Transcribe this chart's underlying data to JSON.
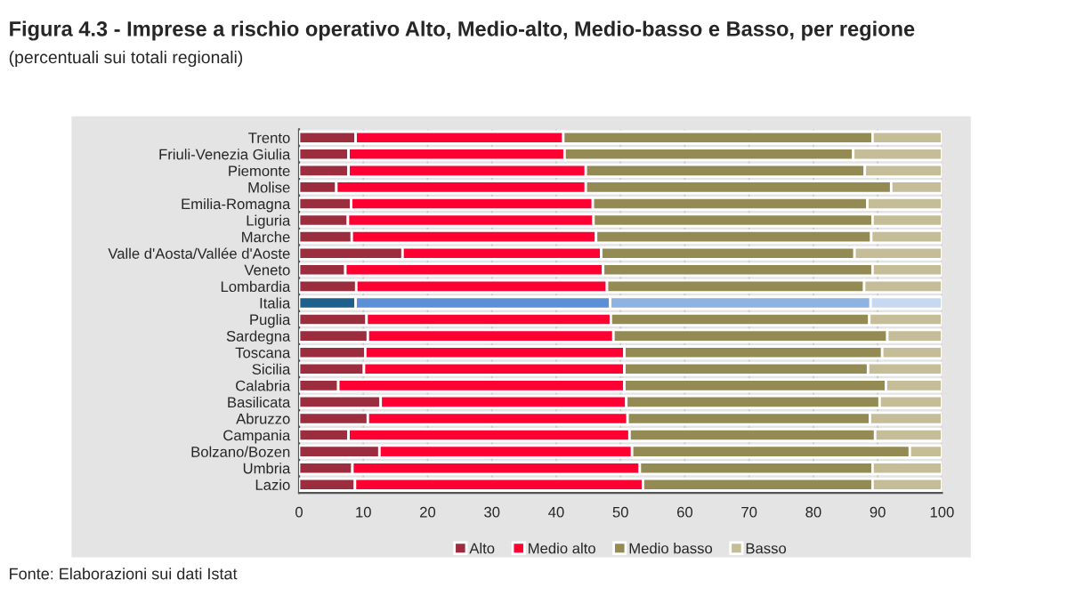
{
  "chart_data": {
    "type": "bar",
    "orientation": "horizontal",
    "stacked": true,
    "title": "Figura 4.3 - Imprese a rischio operativo Alto, Medio-alto, Medio-basso e Basso, per regione",
    "subtitle": "(percentuali sui totali regionali)",
    "annotations": [
      "Fonte: Elaborazioni sui dati Istat"
    ],
    "categories": [
      "Trento",
      "Friuli-Venezia Giulia",
      "Piemonte",
      "Molise",
      "Emilia-Romagna",
      "Liguria",
      "Marche",
      "Valle d'Aosta/Vallée d'Aoste",
      "Veneto",
      "Lombardia",
      "Italia",
      "Puglia",
      "Sardegna",
      "Toscana",
      "Sicilia",
      "Calabria",
      "Basilicata",
      "Abruzzo",
      "Campania",
      "Bolzano/Bozen",
      "Umbria",
      "Lazio"
    ],
    "series": [
      {
        "name": "Alto",
        "color": "#9b2d3f",
        "colors": [
          "#9b2d3f",
          "#9b2d3f",
          "#9b2d3f",
          "#9b2d3f",
          "#9b2d3f",
          "#9b2d3f",
          "#9b2d3f",
          "#9b2d3f",
          "#9b2d3f",
          "#9b2d3f",
          "#1f5f8b",
          "#9b2d3f",
          "#9b2d3f",
          "#9b2d3f",
          "#9b2d3f",
          "#9b2d3f",
          "#9b2d3f",
          "#9b2d3f",
          "#9b2d3f",
          "#9b2d3f",
          "#9b2d3f",
          "#9b2d3f"
        ],
        "values": [
          8.8,
          7.7,
          7.7,
          5.8,
          8.1,
          7.6,
          8.2,
          16.1,
          7.2,
          8.9,
          8.8,
          10.5,
          10.7,
          10.3,
          10.1,
          6.1,
          12.7,
          10.7,
          7.7,
          12.5,
          8.3,
          8.7
        ]
      },
      {
        "name": "Medio alto",
        "color": "#ff0033",
        "colors": [
          "#ff0033",
          "#ff0033",
          "#ff0033",
          "#ff0033",
          "#ff0033",
          "#ff0033",
          "#ff0033",
          "#ff0033",
          "#ff0033",
          "#ff0033",
          "#5b8fd6",
          "#ff0033",
          "#ff0033",
          "#ff0033",
          "#ff0033",
          "#ff0033",
          "#ff0033",
          "#ff0033",
          "#ff0033",
          "#ff0033",
          "#ff0033",
          "#ff0033"
        ],
        "values": [
          32.3,
          33.6,
          36.9,
          38.8,
          37.6,
          38.2,
          38.0,
          30.9,
          40.1,
          39.0,
          39.6,
          38.0,
          38.2,
          40.3,
          40.5,
          44.5,
          38.2,
          40.4,
          43.7,
          39.3,
          44.7,
          44.8
        ]
      },
      {
        "name": "Medio basso",
        "color": "#948a54",
        "colors": [
          "#948a54",
          "#948a54",
          "#948a54",
          "#948a54",
          "#948a54",
          "#948a54",
          "#948a54",
          "#948a54",
          "#948a54",
          "#948a54",
          "#8db3e2",
          "#948a54",
          "#948a54",
          "#948a54",
          "#948a54",
          "#948a54",
          "#948a54",
          "#948a54",
          "#948a54",
          "#948a54",
          "#948a54",
          "#948a54"
        ],
        "values": [
          48.1,
          44.9,
          43.4,
          47.5,
          42.7,
          43.4,
          42.8,
          39.4,
          41.9,
          40.0,
          40.5,
          40.2,
          42.6,
          40.1,
          37.9,
          40.7,
          39.4,
          37.7,
          38.2,
          43.2,
          36.2,
          35.7
        ]
      },
      {
        "name": "Basso",
        "color": "#c4bd97",
        "colors": [
          "#c4bd97",
          "#c4bd97",
          "#c4bd97",
          "#c4bd97",
          "#c4bd97",
          "#c4bd97",
          "#c4bd97",
          "#c4bd97",
          "#c4bd97",
          "#c4bd97",
          "#c6d9f1",
          "#c4bd97",
          "#c4bd97",
          "#c4bd97",
          "#c4bd97",
          "#c4bd97",
          "#c4bd97",
          "#c4bd97",
          "#c4bd97",
          "#c4bd97",
          "#c4bd97",
          "#c4bd97"
        ],
        "values": [
          10.8,
          13.8,
          12.0,
          7.9,
          11.6,
          10.8,
          11.0,
          13.6,
          10.8,
          12.1,
          11.1,
          11.3,
          8.5,
          9.3,
          11.5,
          8.7,
          9.7,
          11.2,
          10.4,
          5.0,
          10.8,
          10.8
        ]
      }
    ],
    "xlim": [
      0,
      100
    ],
    "xticks": [
      0,
      10,
      20,
      30,
      40,
      50,
      60,
      70,
      80,
      90,
      100
    ],
    "grid": "x",
    "legend": "bottom"
  }
}
